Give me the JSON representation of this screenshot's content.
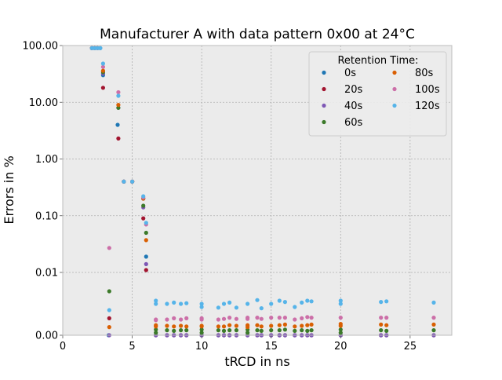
{
  "chart_data": {
    "type": "scatter",
    "title": "Manufacturer A with data pattern 0x00 at 24°C",
    "xlabel": "tRCD in ns",
    "ylabel": "Errors in %",
    "xlim": [
      0,
      28
    ],
    "x_ticks": [
      0,
      5,
      10,
      15,
      20,
      25
    ],
    "x_tick_labels": [
      "0",
      "5",
      "10",
      "15",
      "20",
      "25"
    ],
    "y_scale": "symlog",
    "y_ticks": [
      0,
      0.01,
      0.1,
      1,
      10,
      100
    ],
    "y_tick_labels": [
      "0.00",
      "0.01",
      "0.10",
      "1.00",
      "10.00",
      "100.00"
    ],
    "grid": true,
    "legend": {
      "title": "Retention Time:",
      "placement": "top-right",
      "ncol": 2
    },
    "series": [
      {
        "name": "0s",
        "color": "#1f77b4",
        "points": [
          [
            2.1,
            90
          ],
          [
            2.3,
            90
          ],
          [
            2.5,
            90
          ],
          [
            2.7,
            90
          ],
          [
            2.9,
            30
          ],
          [
            3.3,
            0
          ],
          [
            3.95,
            4.0
          ],
          [
            4.4,
            0.4
          ],
          [
            5.0,
            0.4
          ],
          [
            5.8,
            0.2
          ],
          [
            6.0,
            0.019
          ],
          [
            6.7,
            0
          ],
          [
            7.5,
            0
          ],
          [
            8.0,
            0
          ],
          [
            8.5,
            0
          ],
          [
            8.9,
            0
          ],
          [
            10.0,
            0
          ],
          [
            11.2,
            0
          ],
          [
            11.6,
            0
          ],
          [
            12.0,
            0
          ],
          [
            12.5,
            0
          ],
          [
            13.3,
            0
          ],
          [
            14.0,
            0
          ],
          [
            14.3,
            0
          ],
          [
            15.0,
            0
          ],
          [
            15.6,
            0
          ],
          [
            16.0,
            0
          ],
          [
            16.7,
            0
          ],
          [
            17.2,
            0
          ],
          [
            17.6,
            0
          ],
          [
            17.9,
            0
          ],
          [
            20.0,
            0
          ],
          [
            22.9,
            0
          ],
          [
            23.3,
            0
          ],
          [
            26.7,
            0
          ]
        ]
      },
      {
        "name": "20s",
        "color": "#a2142f",
        "points": [
          [
            2.1,
            90
          ],
          [
            2.3,
            90
          ],
          [
            2.5,
            90
          ],
          [
            2.9,
            18
          ],
          [
            3.35,
            0.0027
          ],
          [
            4.0,
            2.3
          ],
          [
            4.4,
            0.4
          ],
          [
            5.0,
            0.4
          ],
          [
            5.8,
            0.09
          ],
          [
            6.0,
            0.011
          ],
          [
            6.7,
            0
          ],
          [
            7.5,
            0
          ],
          [
            8.0,
            0
          ],
          [
            8.5,
            0
          ],
          [
            8.9,
            0
          ],
          [
            10.0,
            0
          ],
          [
            11.2,
            0
          ],
          [
            11.6,
            0
          ],
          [
            12.0,
            0
          ],
          [
            12.5,
            0
          ],
          [
            13.3,
            0
          ],
          [
            14.0,
            0
          ],
          [
            14.3,
            0
          ],
          [
            15.0,
            0
          ],
          [
            15.6,
            0
          ],
          [
            16.0,
            0
          ],
          [
            16.7,
            0
          ],
          [
            17.2,
            0
          ],
          [
            17.6,
            0
          ],
          [
            17.9,
            0
          ],
          [
            20.0,
            0
          ],
          [
            22.9,
            0
          ],
          [
            23.3,
            0
          ],
          [
            26.7,
            0
          ]
        ]
      },
      {
        "name": "40s",
        "color": "#7e57b5",
        "points": [
          [
            2.1,
            90
          ],
          [
            2.3,
            90
          ],
          [
            2.5,
            90
          ],
          [
            2.9,
            32
          ],
          [
            3.35,
            0
          ],
          [
            4.0,
            8
          ],
          [
            4.4,
            0.4
          ],
          [
            5.0,
            0.4
          ],
          [
            5.8,
            0.14
          ],
          [
            6.0,
            0.014
          ],
          [
            6.7,
            0
          ],
          [
            7.5,
            0
          ],
          [
            8.0,
            0
          ],
          [
            8.5,
            0
          ],
          [
            8.9,
            0
          ],
          [
            10.0,
            0
          ],
          [
            11.2,
            0
          ],
          [
            11.6,
            0
          ],
          [
            12.0,
            0
          ],
          [
            12.5,
            0
          ],
          [
            13.3,
            0
          ],
          [
            14.0,
            0
          ],
          [
            14.3,
            0
          ],
          [
            15.0,
            0
          ],
          [
            15.6,
            0
          ],
          [
            16.0,
            0
          ],
          [
            16.7,
            0
          ],
          [
            17.2,
            0
          ],
          [
            17.6,
            0
          ],
          [
            17.9,
            0
          ],
          [
            20.0,
            0
          ],
          [
            22.9,
            0
          ],
          [
            23.3,
            0
          ],
          [
            26.7,
            0
          ]
        ]
      },
      {
        "name": "60s",
        "color": "#3c7a2a",
        "points": [
          [
            2.1,
            90
          ],
          [
            2.3,
            90
          ],
          [
            2.5,
            90
          ],
          [
            2.9,
            34
          ],
          [
            3.35,
            0.007
          ],
          [
            4.0,
            8
          ],
          [
            4.4,
            0.4
          ],
          [
            5.0,
            0.4
          ],
          [
            5.8,
            0.15
          ],
          [
            6.0,
            0.05
          ],
          [
            6.7,
            0.0009
          ],
          [
            6.7,
            0.0004
          ],
          [
            7.5,
            0.0008
          ],
          [
            8.0,
            0.0007
          ],
          [
            8.5,
            0.0008
          ],
          [
            8.9,
            0.0008
          ],
          [
            10.0,
            0.0009
          ],
          [
            10.0,
            0.0004
          ],
          [
            11.2,
            0.0008
          ],
          [
            11.6,
            0.0007
          ],
          [
            12.0,
            0.0008
          ],
          [
            12.5,
            0.0008
          ],
          [
            13.3,
            0.0009
          ],
          [
            13.3,
            0.0004
          ],
          [
            14.0,
            0.0008
          ],
          [
            14.3,
            0.0007
          ],
          [
            15.0,
            0.0008
          ],
          [
            15.6,
            0.0008
          ],
          [
            16.0,
            0.0009
          ],
          [
            16.7,
            0.0007
          ],
          [
            17.2,
            0.0008
          ],
          [
            17.6,
            0.0007
          ],
          [
            17.9,
            0.0008
          ],
          [
            20.0,
            0.0009
          ],
          [
            20.0,
            0.0004
          ],
          [
            22.9,
            0.0008
          ],
          [
            23.3,
            0.0007
          ],
          [
            26.7,
            0.0008
          ]
        ]
      },
      {
        "name": "80s",
        "color": "#d95f02",
        "points": [
          [
            2.1,
            90
          ],
          [
            2.3,
            90
          ],
          [
            2.5,
            90
          ],
          [
            2.9,
            36
          ],
          [
            3.35,
            0.0013
          ],
          [
            4.0,
            9
          ],
          [
            4.4,
            0.4
          ],
          [
            5.0,
            0.4
          ],
          [
            5.8,
            0.2
          ],
          [
            6.0,
            0.037
          ],
          [
            6.7,
            0.0016
          ],
          [
            6.7,
            0.0014
          ],
          [
            7.5,
            0.0015
          ],
          [
            8.0,
            0.0014
          ],
          [
            8.5,
            0.0015
          ],
          [
            8.9,
            0.0014
          ],
          [
            10.0,
            0.0015
          ],
          [
            10.0,
            0.0014
          ],
          [
            11.2,
            0.0014
          ],
          [
            11.6,
            0.0014
          ],
          [
            12.0,
            0.0016
          ],
          [
            12.5,
            0.0015
          ],
          [
            13.3,
            0.0016
          ],
          [
            13.3,
            0.0013
          ],
          [
            14.0,
            0.0016
          ],
          [
            14.3,
            0.0014
          ],
          [
            15.0,
            0.0015
          ],
          [
            15.6,
            0.0016
          ],
          [
            16.0,
            0.0017
          ],
          [
            16.7,
            0.0014
          ],
          [
            17.2,
            0.0015
          ],
          [
            17.6,
            0.0016
          ],
          [
            17.9,
            0.0017
          ],
          [
            20.0,
            0.0018
          ],
          [
            20.0,
            0.0015
          ],
          [
            22.9,
            0.0017
          ],
          [
            23.3,
            0.0016
          ],
          [
            26.7,
            0.0017
          ]
        ]
      },
      {
        "name": "100s",
        "color": "#cc6fa8",
        "points": [
          [
            2.1,
            90
          ],
          [
            2.3,
            90
          ],
          [
            2.5,
            90
          ],
          [
            2.9,
            42
          ],
          [
            3.35,
            0.027
          ],
          [
            4.0,
            15
          ],
          [
            4.4,
            0.4
          ],
          [
            5.0,
            0.4
          ],
          [
            5.8,
            0.21
          ],
          [
            6.0,
            0.07
          ],
          [
            6.7,
            0.0025
          ],
          [
            6.7,
            0.0024
          ],
          [
            7.5,
            0.0025
          ],
          [
            8.0,
            0.0027
          ],
          [
            8.5,
            0.0025
          ],
          [
            8.9,
            0.0027
          ],
          [
            10.0,
            0.0027
          ],
          [
            10.0,
            0.0025
          ],
          [
            11.2,
            0.0025
          ],
          [
            11.6,
            0.0026
          ],
          [
            12.0,
            0.0028
          ],
          [
            12.5,
            0.0026
          ],
          [
            13.3,
            0.0028
          ],
          [
            13.3,
            0.0026
          ],
          [
            14.0,
            0.0028
          ],
          [
            14.3,
            0.0026
          ],
          [
            15.0,
            0.0028
          ],
          [
            15.6,
            0.0028
          ],
          [
            16.0,
            0.0028
          ],
          [
            16.7,
            0.0025
          ],
          [
            17.2,
            0.0027
          ],
          [
            17.6,
            0.0029
          ],
          [
            17.9,
            0.0028
          ],
          [
            20.0,
            0.0028
          ],
          [
            22.9,
            0.0028
          ],
          [
            23.3,
            0.0028
          ],
          [
            26.7,
            0.0028
          ]
        ]
      },
      {
        "name": "120s",
        "color": "#56b4e9",
        "points": [
          [
            2.1,
            90
          ],
          [
            2.3,
            90
          ],
          [
            2.5,
            90
          ],
          [
            2.7,
            90
          ],
          [
            2.9,
            48
          ],
          [
            3.35,
            0.004
          ],
          [
            4.0,
            13
          ],
          [
            4.4,
            0.4
          ],
          [
            5.0,
            0.4
          ],
          [
            5.8,
            0.22
          ],
          [
            6.0,
            0.075
          ],
          [
            6.7,
            0.0055
          ],
          [
            6.7,
            0.005
          ],
          [
            7.5,
            0.005
          ],
          [
            8.0,
            0.0052
          ],
          [
            8.5,
            0.005
          ],
          [
            8.9,
            0.0051
          ],
          [
            10.0,
            0.005
          ],
          [
            10.0,
            0.0045
          ],
          [
            11.2,
            0.0044
          ],
          [
            11.6,
            0.005
          ],
          [
            12.0,
            0.0052
          ],
          [
            12.5,
            0.0044
          ],
          [
            13.3,
            0.005
          ],
          [
            14.0,
            0.0056
          ],
          [
            14.3,
            0.0043
          ],
          [
            15.0,
            0.005
          ],
          [
            15.6,
            0.0055
          ],
          [
            16.0,
            0.0053
          ],
          [
            16.7,
            0.0045
          ],
          [
            17.2,
            0.0052
          ],
          [
            17.6,
            0.0055
          ],
          [
            17.9,
            0.0054
          ],
          [
            20.0,
            0.0055
          ],
          [
            20.0,
            0.005
          ],
          [
            22.9,
            0.0053
          ],
          [
            23.3,
            0.0054
          ],
          [
            26.7,
            0.0052
          ]
        ]
      }
    ]
  }
}
